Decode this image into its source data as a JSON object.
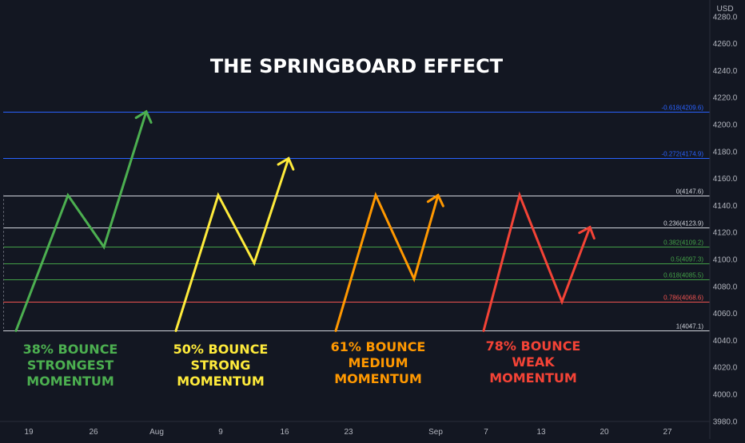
{
  "chart_data": {
    "type": "line",
    "title": "THE SPRINGBOARD EFFECT",
    "currency": "USD",
    "ylim": [
      3980,
      4290
    ],
    "y_ticks": [
      {
        "value": 4280,
        "label": "4280.0"
      },
      {
        "value": 4260,
        "label": "4260.0"
      },
      {
        "value": 4240,
        "label": "4240.0"
      },
      {
        "value": 4220,
        "label": "4220.0"
      },
      {
        "value": 4200,
        "label": "4200.0"
      },
      {
        "value": 4180,
        "label": "4180.0"
      },
      {
        "value": 4160,
        "label": "4160.0"
      },
      {
        "value": 4140,
        "label": "4140.0"
      },
      {
        "value": 4120,
        "label": "4120.0"
      },
      {
        "value": 4100,
        "label": "4100.0"
      },
      {
        "value": 4080,
        "label": "4080.0"
      },
      {
        "value": 4060,
        "label": "4060.0"
      },
      {
        "value": 4040,
        "label": "4040.0"
      },
      {
        "value": 4020,
        "label": "4020.0"
      },
      {
        "value": 4000,
        "label": "4000.0"
      },
      {
        "value": 3980,
        "label": "3980.0"
      }
    ],
    "x_ticks": [
      "19",
      "26",
      "Aug",
      "9",
      "16",
      "23",
      "Sep",
      "7",
      "13",
      "20",
      "27"
    ],
    "fib_levels": [
      {
        "ratio": "-0.618",
        "value": 4209.6,
        "label": "-0.618(4209.6)",
        "color": "#2962ff"
      },
      {
        "ratio": "-0.272",
        "value": 4174.9,
        "label": "-0.272(4174.9)",
        "color": "#2962ff"
      },
      {
        "ratio": "0",
        "value": 4147.6,
        "label": "0(4147.6)",
        "color": "#d1d4dc"
      },
      {
        "ratio": "0.236",
        "value": 4123.9,
        "label": "0.236(4123.9)",
        "color": "#d1d4dc"
      },
      {
        "ratio": "0.382",
        "value": 4109.2,
        "label": "0.382(4109.2)",
        "color": "#43a047"
      },
      {
        "ratio": "0.5",
        "value": 4097.3,
        "label": "0.5(4097.3)",
        "color": "#43a047"
      },
      {
        "ratio": "0.618",
        "value": 4085.5,
        "label": "0.618(4085.5)",
        "color": "#43a047"
      },
      {
        "ratio": "0.786",
        "value": 4068.6,
        "label": "0.786(4068.6)",
        "color": "#ef5350"
      },
      {
        "ratio": "1",
        "value": 4047.1,
        "label": "1(4047.1)",
        "color": "#d1d4dc"
      }
    ],
    "series": [
      {
        "name": "38% BOUNCE",
        "color": "#4caf50",
        "bounce": "38%",
        "points": [
          4047.1,
          4147.6,
          4109.2,
          4209.6
        ],
        "annotation": [
          "38% BOUNCE",
          "STRONGEST",
          "MOMENTUM"
        ]
      },
      {
        "name": "50% BOUNCE",
        "color": "#ffeb3b",
        "bounce": "50%",
        "points": [
          4047.1,
          4147.6,
          4097.3,
          4174.9
        ],
        "annotation": [
          "50% BOUNCE",
          "STRONG",
          "MOMENTUM"
        ]
      },
      {
        "name": "61% BOUNCE",
        "color": "#ff9800",
        "bounce": "61%",
        "points": [
          4047.1,
          4147.6,
          4085.5,
          4147.6
        ],
        "annotation": [
          "61% BOUNCE",
          "MEDIUM",
          "MOMENTUM"
        ]
      },
      {
        "name": "78% BOUNCE",
        "color": "#f44336",
        "bounce": "78%",
        "points": [
          4047.1,
          4147.6,
          4068.6,
          4123.9
        ],
        "annotation": [
          "78% BOUNCE",
          "WEAK",
          "MOMENTUM"
        ]
      }
    ]
  }
}
